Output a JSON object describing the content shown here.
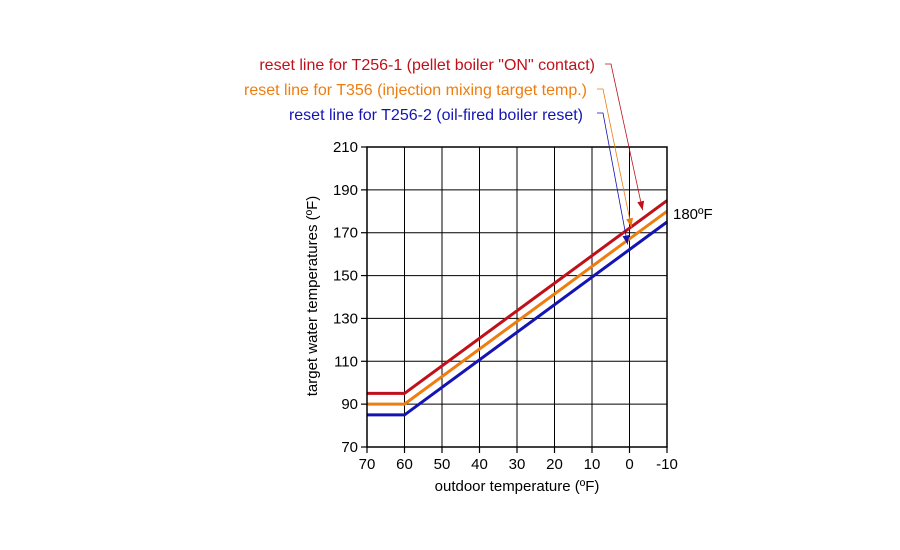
{
  "chart_data": {
    "type": "line",
    "title": "",
    "xlabel": "outdoor temperature (ºF)",
    "ylabel": "target water temperatures (ºF)",
    "xlim": [
      70,
      -10
    ],
    "ylim": [
      70,
      210
    ],
    "x_ticks": [
      70,
      60,
      50,
      40,
      30,
      20,
      10,
      0,
      -10
    ],
    "x_tick_labels": [
      "70",
      "60",
      "50",
      "40",
      "30",
      "20",
      "10",
      "0",
      "-10"
    ],
    "y_ticks": [
      70,
      90,
      110,
      130,
      150,
      170,
      190,
      210
    ],
    "y_tick_labels": [
      "70",
      "90",
      "110",
      "130",
      "150",
      "170",
      "190",
      "210"
    ],
    "grid": true,
    "series": [
      {
        "name": "reset line for T256-1 (pellet boiler \"ON\" contact)",
        "color": "#c0101a",
        "points": [
          [
            70,
            95
          ],
          [
            60,
            95
          ],
          [
            -10,
            185
          ]
        ]
      },
      {
        "name": "reset line for T356 (injection mixing target temp.)",
        "color": "#ee7d10",
        "points": [
          [
            70,
            90
          ],
          [
            60,
            90
          ],
          [
            -10,
            180
          ]
        ]
      },
      {
        "name": "reset line for T256-2 (oil-fired boiler reset)",
        "color": "#1414b4",
        "points": [
          [
            70,
            85
          ],
          [
            60,
            85
          ],
          [
            -10,
            175
          ]
        ]
      }
    ],
    "annotations": [
      {
        "text": "180ºF",
        "x": -10,
        "y": 180
      }
    ]
  }
}
